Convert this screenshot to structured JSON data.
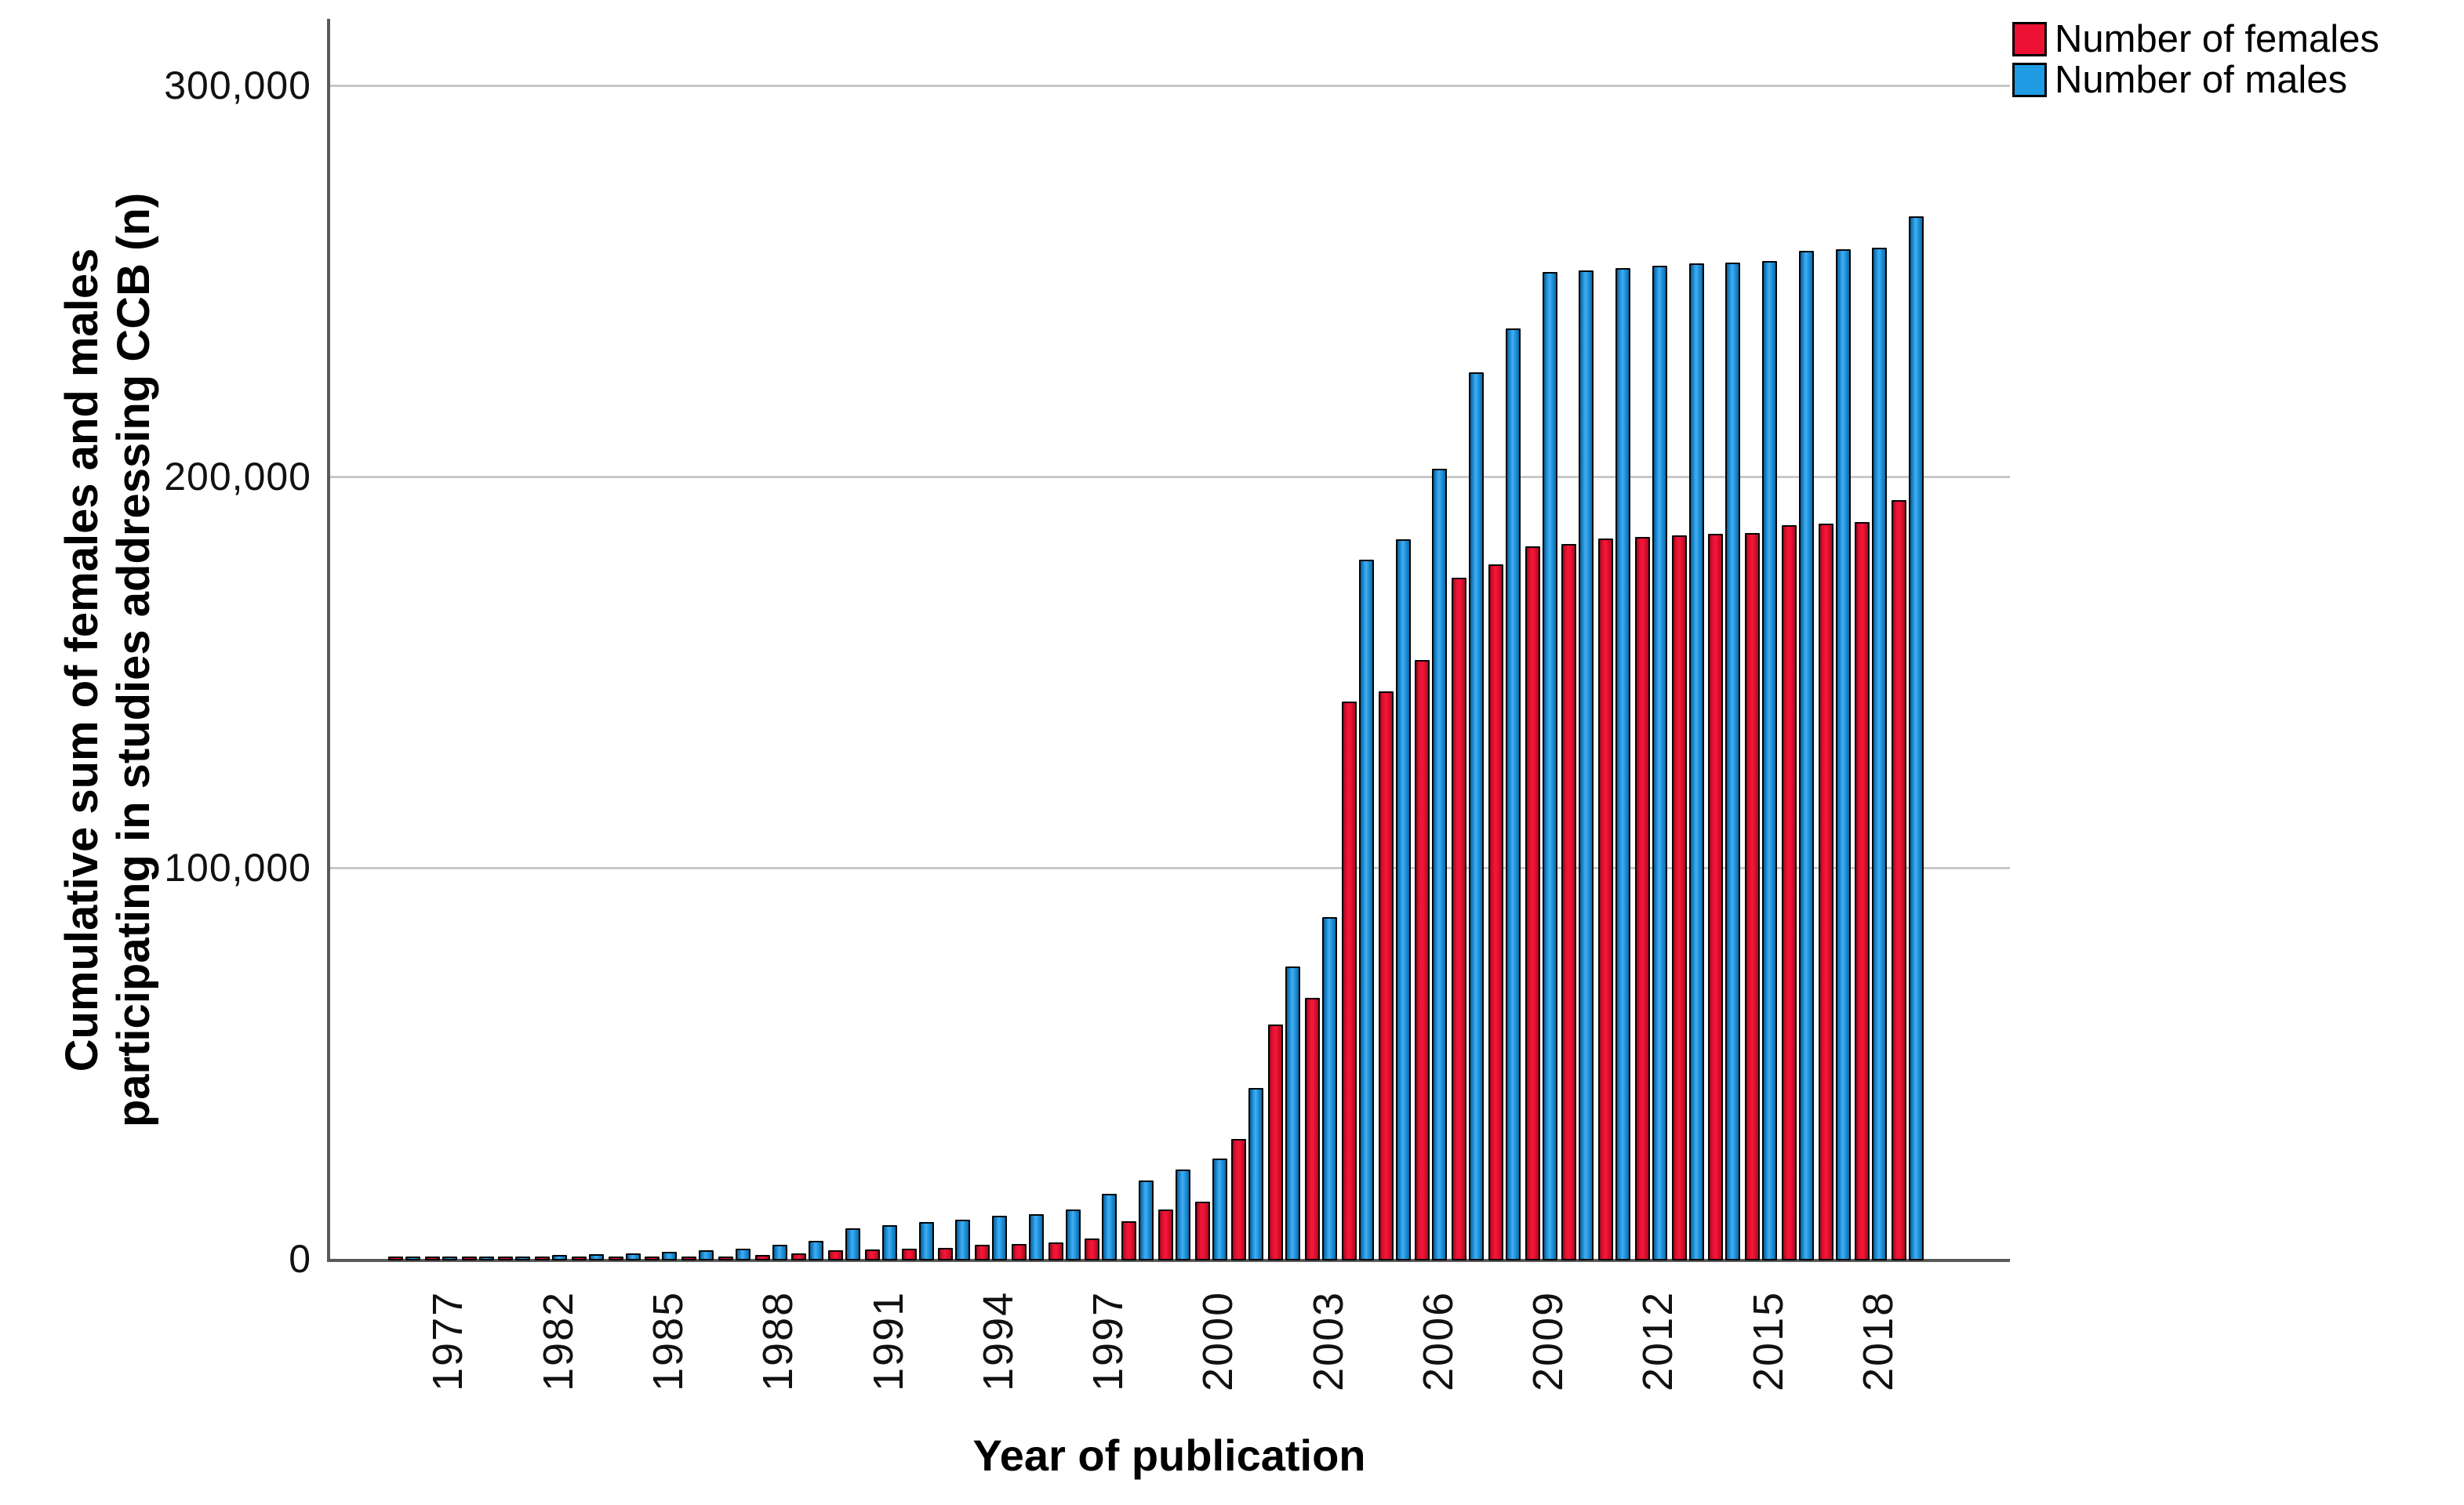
{
  "chart_data": {
    "type": "bar",
    "title": "",
    "xlabel": "Year of publication",
    "ylabel": "Cumulative sum of females and males participating in studies addressing CCB (n)",
    "ylabel_line1": "Cumulative sum of females and males",
    "ylabel_line2": "participating in studies addressing CCB (n)",
    "ylim": [
      0,
      316000
    ],
    "grid": "horizontal",
    "legend_position": "top-right",
    "y_axis": {
      "ticks": [
        {
          "label": "300,000",
          "value": 300000
        },
        {
          "label": "200,000",
          "value": 200000
        },
        {
          "label": "100,000",
          "value": 100000
        },
        {
          "label": "0",
          "value": 0
        }
      ]
    },
    "x_axis": {
      "label_interval": 3,
      "shown_tick_labels": [
        "1977",
        "1982",
        "1985",
        "1988",
        "1991",
        "1994",
        "1997",
        "2000",
        "2003",
        "2006",
        "2009",
        "2012",
        "2015",
        "2018"
      ]
    },
    "categories": [
      1977,
      1979,
      1981,
      1982,
      1983,
      1984,
      1985,
      1986,
      1987,
      1988,
      1989,
      1990,
      1991,
      1992,
      1993,
      1994,
      1995,
      1996,
      1997,
      1998,
      1999,
      2000,
      2001,
      2002,
      2003,
      2004,
      2005,
      2006,
      2007,
      2008,
      2009,
      2010,
      2011,
      2012,
      2013,
      2014,
      2015,
      2016,
      2017,
      2018,
      2019,
      2020
    ],
    "series": [
      {
        "name": "Number of females",
        "color": "#ed1133",
        "values": [
          100,
          200,
          250,
          300,
          350,
          400,
          450,
          500,
          600,
          700,
          1500,
          1800,
          2600,
          2800,
          3000,
          3200,
          4000,
          4300,
          4700,
          5700,
          10100,
          13000,
          15100,
          31000,
          60300,
          67100,
          142900,
          145500,
          153500,
          174500,
          178000,
          182500,
          183200,
          184600,
          185000,
          185400,
          185700,
          186000,
          187900,
          188400,
          188800,
          194300
        ]
      },
      {
        "name": "Number of males",
        "color": "#1f9ce4",
        "values": [
          300,
          500,
          800,
          1100,
          1400,
          1700,
          1900,
          2200,
          2700,
          3100,
          4100,
          5100,
          8200,
          9100,
          9800,
          10400,
          11400,
          11900,
          13100,
          17000,
          20500,
          23200,
          26100,
          44100,
          75200,
          87800,
          179200,
          184300,
          202500,
          227000,
          238300,
          252800,
          253100,
          253700,
          254400,
          254900,
          255200,
          255600,
          258100,
          258600,
          259000,
          267000
        ]
      }
    ]
  },
  "legend": {
    "females_label": "Number of females",
    "males_label": "Number of males"
  }
}
